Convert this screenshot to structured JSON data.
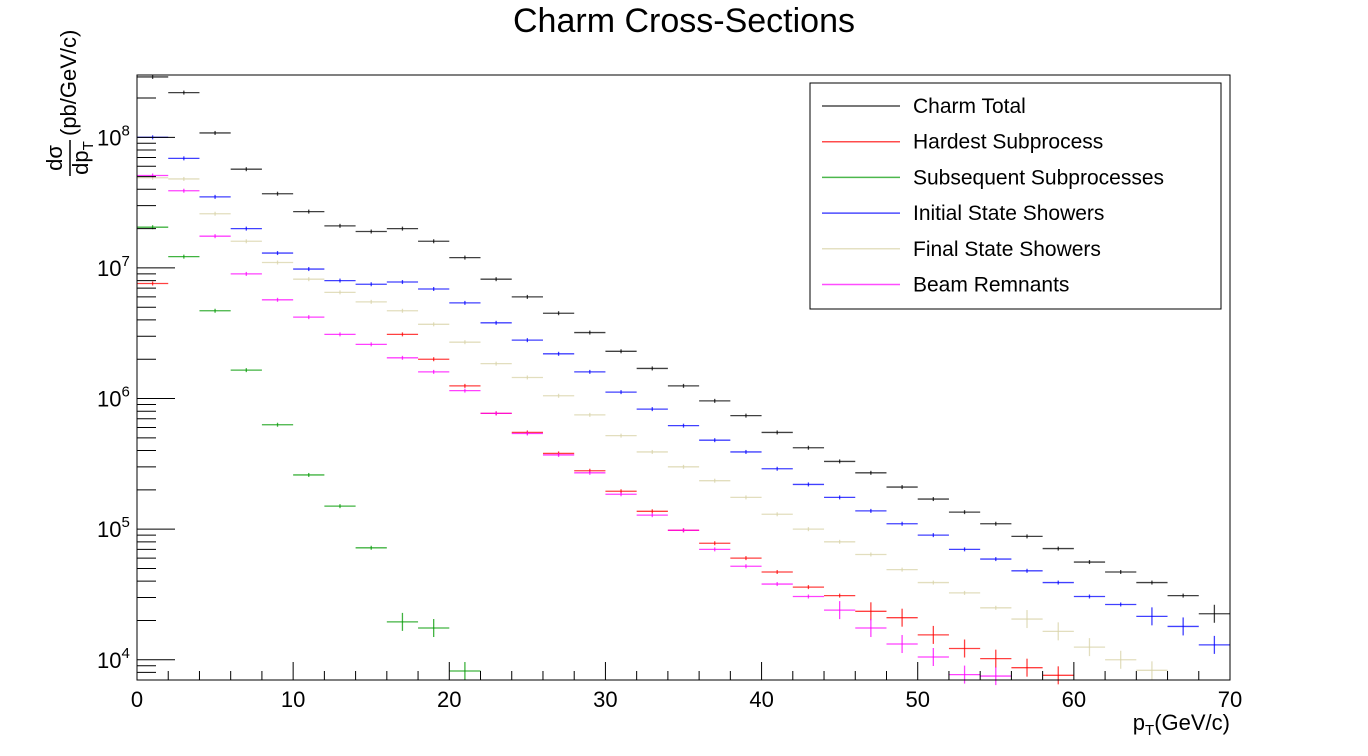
{
  "chart_data": {
    "type": "scatter",
    "title": "Charm Cross-Sections",
    "xlabel": {
      "main": "p",
      "sub": "T",
      "unit": "(GeV/c)"
    },
    "ylabel": {
      "num": "dσ",
      "den": "dp",
      "den_sub": "T",
      "unit": "(pb/GeV/c)"
    },
    "xlim": [
      0,
      70
    ],
    "ylim": [
      7000,
      300000000
    ],
    "yscale": "log",
    "x_ticks": [
      0,
      10,
      20,
      30,
      40,
      50,
      60,
      70
    ],
    "x_tick_labels": [
      "0",
      "10",
      "20",
      "30",
      "40",
      "50",
      "60",
      "70"
    ],
    "y_tick_labels": [
      {
        "value": 10000,
        "base": "10",
        "exp": "4"
      },
      {
        "value": 100000,
        "base": "10",
        "exp": "5"
      },
      {
        "value": 1000000,
        "base": "10",
        "exp": "6"
      },
      {
        "value": 10000000,
        "base": "10",
        "exp": "7"
      },
      {
        "value": 100000000,
        "base": "10",
        "exp": "8"
      }
    ],
    "bin_width": 2,
    "legend_position": "top-right",
    "series": [
      {
        "name": "Charm Total",
        "color": "#000000",
        "x": [
          1,
          3,
          5,
          7,
          9,
          11,
          13,
          15,
          17,
          19,
          21,
          23,
          25,
          27,
          29,
          31,
          33,
          35,
          37,
          39,
          41,
          43,
          45,
          47,
          49,
          51,
          53,
          55,
          57,
          59,
          61,
          63,
          65,
          67,
          69
        ],
        "y": [
          290000000,
          220000000,
          108000000,
          57000000,
          37000000,
          27000000,
          21000000,
          19000000,
          20000000,
          16000000,
          12000000,
          8200000,
          6000000,
          4500000,
          3200000,
          2300000,
          1700000,
          1250000,
          960000,
          740000,
          550000,
          420000,
          330000,
          270000,
          210000,
          170000,
          135000,
          110000,
          88000,
          71000,
          56000,
          47000,
          39000,
          31000,
          22500
        ]
      },
      {
        "name": "Hardest Subprocess",
        "color": "#ff0000",
        "x": [
          1,
          3,
          5,
          7,
          9,
          11,
          13,
          15,
          17,
          19,
          21,
          23,
          25,
          27,
          29,
          31,
          33,
          35,
          37,
          39,
          41,
          43,
          45,
          47,
          49,
          51,
          53,
          55,
          57,
          59,
          61,
          63,
          65,
          67,
          69
        ],
        "y": [
          7600000,
          null,
          null,
          null,
          null,
          null,
          null,
          null,
          3100000,
          2000000,
          1250000,
          770000,
          550000,
          380000,
          280000,
          195000,
          137000,
          98000,
          78000,
          60000,
          47000,
          36000,
          31000,
          23500,
          21000,
          15500,
          12200,
          10200,
          8700,
          7600,
          null,
          null,
          null,
          null,
          null
        ]
      },
      {
        "name": "Subsequent Subprocesses",
        "color": "#009900",
        "x": [
          1,
          3,
          5,
          7,
          9,
          11,
          13,
          15,
          17,
          19,
          21,
          23,
          25,
          27,
          29,
          31,
          33,
          35,
          37,
          39,
          41,
          43,
          45,
          47,
          49,
          51,
          53,
          55,
          57,
          59,
          61,
          63,
          65,
          67,
          69
        ],
        "y": [
          20500000,
          12200000,
          4700000,
          1650000,
          630000,
          260000,
          150000,
          72000,
          19500,
          17500,
          8200,
          null,
          null,
          null,
          null,
          null,
          null,
          null,
          null,
          null,
          null,
          null,
          null,
          null,
          null,
          null,
          null,
          null,
          null,
          null,
          null,
          null,
          null,
          null,
          null
        ]
      },
      {
        "name": "Initial State Showers",
        "color": "#0000ff",
        "x": [
          1,
          3,
          5,
          7,
          9,
          11,
          13,
          15,
          17,
          19,
          21,
          23,
          25,
          27,
          29,
          31,
          33,
          35,
          37,
          39,
          41,
          43,
          45,
          47,
          49,
          51,
          53,
          55,
          57,
          59,
          61,
          63,
          65,
          67,
          69
        ],
        "y": [
          100000000,
          69000000,
          35000000,
          20000000,
          13000000,
          9800000,
          8000000,
          7500000,
          7800000,
          6900000,
          5400000,
          3800000,
          2800000,
          2200000,
          1600000,
          1120000,
          830000,
          620000,
          480000,
          390000,
          290000,
          220000,
          175000,
          138000,
          110000,
          90000,
          70000,
          59000,
          48000,
          39000,
          30500,
          26500,
          21500,
          18000,
          13000
        ]
      },
      {
        "name": "Final State Showers",
        "color": "#d8d3a8",
        "x": [
          1,
          3,
          5,
          7,
          9,
          11,
          13,
          15,
          17,
          19,
          21,
          23,
          25,
          27,
          29,
          31,
          33,
          35,
          37,
          39,
          41,
          43,
          45,
          47,
          49,
          51,
          53,
          55,
          57,
          59,
          61,
          63,
          65,
          67,
          69
        ],
        "y": [
          49000000,
          48000000,
          26000000,
          16000000,
          11000000,
          8200000,
          6500000,
          5500000,
          4700000,
          3700000,
          2700000,
          1850000,
          1450000,
          1050000,
          750000,
          520000,
          390000,
          300000,
          235000,
          175000,
          130000,
          100000,
          80000,
          64000,
          49000,
          39000,
          32500,
          25000,
          20500,
          16500,
          12500,
          10000,
          8300,
          null,
          null
        ]
      },
      {
        "name": "Beam Remnants",
        "color": "#ff00ff",
        "x": [
          1,
          3,
          5,
          7,
          9,
          11,
          13,
          15,
          17,
          19,
          21,
          23,
          25,
          27,
          29,
          31,
          33,
          35,
          37,
          39,
          41,
          43,
          45,
          47,
          49,
          51,
          53,
          55,
          57,
          59,
          61,
          63,
          65,
          67,
          69
        ],
        "y": [
          51000000,
          39000000,
          17500000,
          9000000,
          5700000,
          4200000,
          3100000,
          2600000,
          2050000,
          1600000,
          1150000,
          770000,
          540000,
          370000,
          270000,
          185000,
          128000,
          98000,
          70000,
          52000,
          38000,
          30500,
          24000,
          17500,
          13200,
          10500,
          7700,
          7500,
          null,
          null,
          null,
          null,
          null,
          null,
          null
        ]
      }
    ]
  }
}
